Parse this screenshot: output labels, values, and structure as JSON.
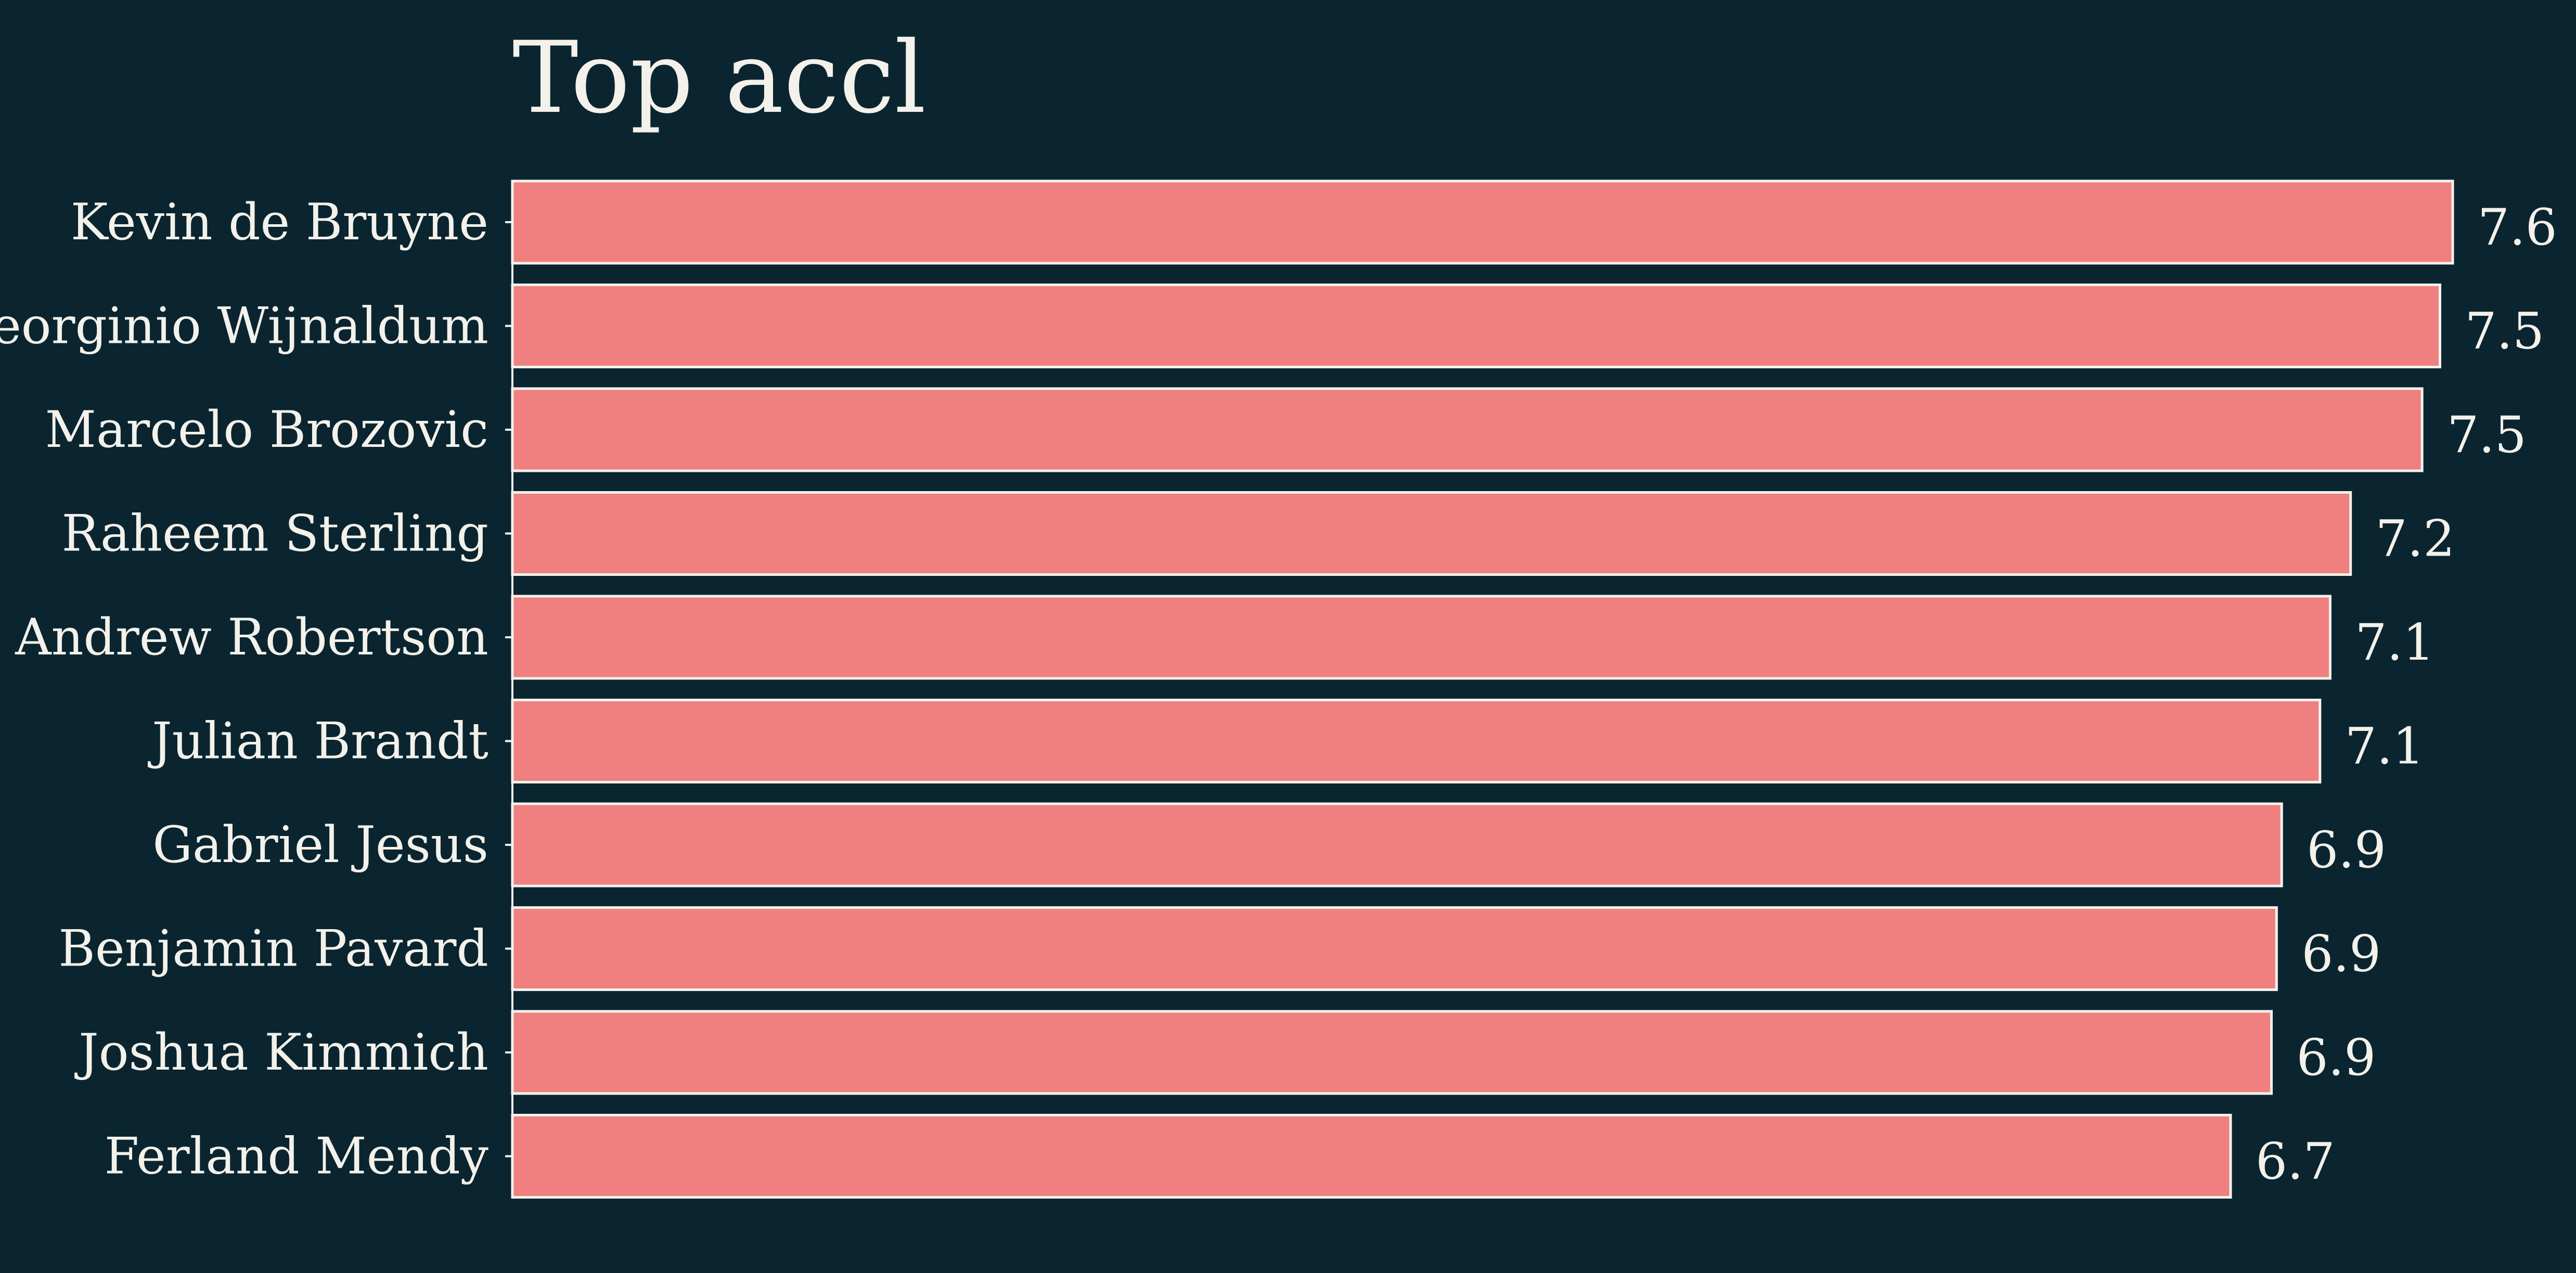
{
  "chart_data": {
    "type": "bar",
    "orientation": "horizontal",
    "title": "Top accl",
    "xlabel": "",
    "ylabel": "",
    "categories": [
      "Kevin de Bruyne",
      "Georginio Wijnaldum",
      "Marcelo Brozovic",
      "Raheem Sterling",
      "Andrew Robertson",
      "Julian Brandt",
      "Gabriel Jesus",
      "Benjamin Pavard",
      "Joshua Kimmich",
      "Ferland Mendy"
    ],
    "values": [
      7.6,
      7.55,
      7.48,
      7.2,
      7.12,
      7.08,
      6.93,
      6.91,
      6.89,
      6.73
    ],
    "value_labels": [
      "7.6",
      "7.5",
      "7.5",
      "7.2",
      "7.1",
      "7.1",
      "6.9",
      "6.9",
      "6.9",
      "6.7"
    ],
    "xlim": [
      0,
      7.6
    ],
    "grid": false,
    "legend": "none",
    "x_axis_visible": false,
    "colors": {
      "background": "#0a2530",
      "bar_fill": "#f08080",
      "bar_edge": "#f3f1ea",
      "text": "#f3f1ea"
    }
  }
}
